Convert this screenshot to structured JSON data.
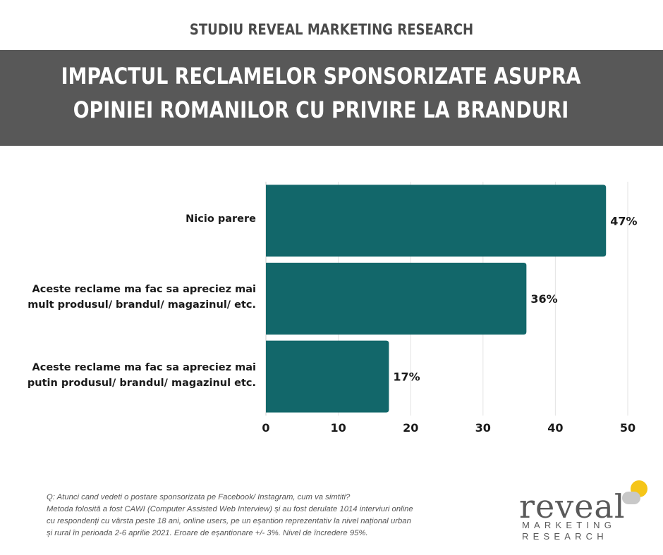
{
  "header": {
    "top_title": "STUDIU REVEAL MARKETING RESEARCH",
    "banner_line1": "IMPACTUL RECLAMELOR SPONSORIZATE ASUPRA",
    "banner_line2": "OPINIEI ROMANILOR CU PRIVIRE LA BRANDURI"
  },
  "chart_data": {
    "type": "bar",
    "orientation": "horizontal",
    "categories": [
      [
        "Nicio parere"
      ],
      [
        "Aceste reclame ma fac sa apreciez mai",
        "mult produsul/ brandul/ magazinul/ etc."
      ],
      [
        "Aceste reclame ma fac sa apreciez mai",
        "putin produsul/ brandul/ magazinul etc."
      ]
    ],
    "values": [
      47,
      36,
      17
    ],
    "value_labels": [
      "47%",
      "36%",
      "17%"
    ],
    "xlim": [
      0,
      50
    ],
    "xticks": [
      0,
      10,
      20,
      30,
      40,
      50
    ],
    "grid": true,
    "bar_color": "#12676a"
  },
  "footnote": {
    "lines": [
      "Q: Atunci cand vedeti o postare sponsorizata pe Facebook/ Instagram, cum va simtiti?",
      "Metoda folosită a fost CAWI (Computer Assisted Web Interview) și au fost derulate 1014 interviuri online",
      "cu respondenți cu vârsta peste 18 ani, online users, pe un eșantion reprezentativ la nivel național urban",
      "și rural în perioada 2-6 aprilie 2021. Eroare de eșantionare +/- 3%. Nivel de încredere 95%."
    ]
  },
  "logo": {
    "word": "reveal",
    "line1": "MARKETING",
    "line2": "RESEARCH",
    "accent_color": "#f5c518"
  }
}
